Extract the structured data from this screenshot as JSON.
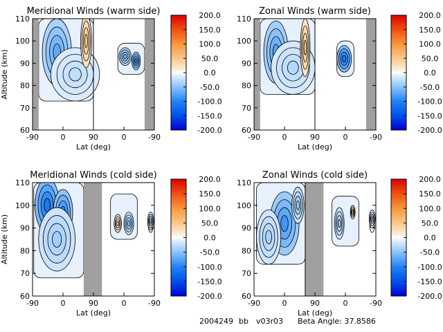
{
  "chart_data": [
    {
      "type": "heatmap",
      "title": "Meridional Winds (warm side)",
      "xlabel": "Lat (deg)",
      "ylabel": "Altitude (km)",
      "x_ticks": [
        "-90",
        "0",
        "90",
        "0",
        "-90"
      ],
      "y_ticks": [
        "60",
        "70",
        "80",
        "90",
        "100",
        "110"
      ],
      "ylim": [
        60,
        110
      ],
      "colorbar": {
        "ticks": [
          "200.0",
          "150.0",
          "100.0",
          "50.0",
          "0.0",
          "-50.0",
          "-100.0",
          "-150.0",
          "-200.0"
        ],
        "range": [
          -200,
          200
        ]
      },
      "blobs": [
        {
          "x": 0.2,
          "y": 95,
          "v": -70,
          "rx": 0.12,
          "ry": 15
        },
        {
          "x": 0.35,
          "y": 85,
          "v": -25,
          "rx": 0.2,
          "ry": 12
        },
        {
          "x": 0.44,
          "y": 100,
          "v": 45,
          "rx": 0.045,
          "ry": 12
        },
        {
          "x": 0.76,
          "y": 93,
          "v": -60,
          "rx": 0.05,
          "ry": 4
        },
        {
          "x": 0.85,
          "y": 91,
          "v": -90,
          "rx": 0.035,
          "ry": 4
        }
      ],
      "data_region": [
        [
          0.05,
          73,
          0.5,
          110
        ],
        [
          0.7,
          85,
          0.92,
          99
        ]
      ],
      "gray_bands": [
        [
          0.0,
          0.05
        ],
        [
          0.92,
          1.0
        ]
      ],
      "vlines": [
        0.5
      ]
    },
    {
      "type": "heatmap",
      "title": "Zonal Winds (warm side)",
      "xlabel": "Lat (deg)",
      "ylabel": "",
      "x_ticks": [
        "-90",
        "0",
        "90",
        "0",
        "-90"
      ],
      "y_ticks": [
        "60",
        "70",
        "80",
        "90",
        "100",
        "110"
      ],
      "ylim": [
        60,
        110
      ],
      "colorbar": {
        "ticks": [
          "200.0",
          "150.0",
          "100.0",
          "50.0",
          "0.0",
          "-50.0",
          "-100.0",
          "-150.0",
          "-200.0"
        ],
        "range": [
          -200,
          200
        ]
      },
      "blobs": [
        {
          "x": 0.18,
          "y": 95,
          "v": -75,
          "rx": 0.1,
          "ry": 14
        },
        {
          "x": 0.32,
          "y": 88,
          "v": -30,
          "rx": 0.18,
          "ry": 12
        },
        {
          "x": 0.42,
          "y": 97,
          "v": 45,
          "rx": 0.04,
          "ry": 13
        },
        {
          "x": 0.74,
          "y": 92,
          "v": -110,
          "rx": 0.06,
          "ry": 6
        }
      ],
      "data_region": [
        [
          0.05,
          76,
          0.5,
          110
        ],
        [
          0.68,
          84,
          0.82,
          100
        ]
      ],
      "gray_bands": [
        [
          0.0,
          0.05
        ],
        [
          0.92,
          1.0
        ]
      ],
      "vlines": [
        0.5
      ]
    },
    {
      "type": "heatmap",
      "title": "Meridional Winds (cold side)",
      "xlabel": "Lat (deg)",
      "ylabel": "Altitude (km)",
      "x_ticks": [
        "-90",
        "0",
        "90",
        "0",
        "-90"
      ],
      "y_ticks": [
        "60",
        "70",
        "80",
        "90",
        "100",
        "110"
      ],
      "ylim": [
        60,
        110
      ],
      "colorbar": {
        "ticks": [
          "200.0",
          "150.0",
          "100.0",
          "50.0",
          "0.0",
          "-50.0",
          "-100.0",
          "-150.0",
          "-200.0"
        ],
        "range": [
          -200,
          200
        ]
      },
      "blobs": [
        {
          "x": 0.12,
          "y": 100,
          "v": -110,
          "rx": 0.1,
          "ry": 12
        },
        {
          "x": 0.25,
          "y": 97,
          "v": -95,
          "rx": 0.08,
          "ry": 10
        },
        {
          "x": 0.2,
          "y": 85,
          "v": -40,
          "rx": 0.15,
          "ry": 14
        },
        {
          "x": 0.7,
          "y": 92,
          "v": 30,
          "rx": 0.03,
          "ry": 4
        },
        {
          "x": 0.79,
          "y": 92,
          "v": -45,
          "rx": 0.04,
          "ry": 5
        },
        {
          "x": 0.97,
          "y": 93,
          "v": -30,
          "rx": 0.025,
          "ry": 4
        }
      ],
      "data_region": [
        [
          0.01,
          68,
          0.42,
          110
        ],
        [
          0.64,
          85,
          0.86,
          105
        ],
        [
          0.95,
          88,
          0.99,
          97
        ]
      ],
      "gray_bands": [
        [
          0.42,
          0.57
        ]
      ],
      "vlines": []
    },
    {
      "type": "heatmap",
      "title": "Zonal Winds (cold side)",
      "xlabel": "Lat (deg)",
      "ylabel": "",
      "x_ticks": [
        "-90",
        "0",
        "90",
        "0",
        "-90"
      ],
      "y_ticks": [
        "60",
        "70",
        "80",
        "90",
        "100",
        "110"
      ],
      "ylim": [
        60,
        110
      ],
      "colorbar": {
        "ticks": [
          "200.0",
          "150.0",
          "100.0",
          "50.0",
          "0.0",
          "-50.0",
          "-100.0",
          "-150.0",
          "-200.0"
        ],
        "range": [
          -200,
          200
        ]
      },
      "blobs": [
        {
          "x": 0.25,
          "y": 92,
          "v": -85,
          "rx": 0.12,
          "ry": 14
        },
        {
          "x": 0.12,
          "y": 86,
          "v": -35,
          "rx": 0.1,
          "ry": 12
        },
        {
          "x": 0.36,
          "y": 100,
          "v": -45,
          "rx": 0.05,
          "ry": 8
        },
        {
          "x": 0.7,
          "y": 92,
          "v": -40,
          "rx": 0.04,
          "ry": 7
        },
        {
          "x": 0.81,
          "y": 97,
          "v": 30,
          "rx": 0.02,
          "ry": 3
        },
        {
          "x": 0.97,
          "y": 94,
          "v": -25,
          "rx": 0.025,
          "ry": 4
        }
      ],
      "data_region": [
        [
          0.02,
          74,
          0.42,
          110
        ],
        [
          0.64,
          82,
          0.86,
          104
        ],
        [
          0.95,
          88,
          0.99,
          97
        ]
      ],
      "gray_bands": [
        [
          0.42,
          0.57
        ]
      ],
      "vlines": [
        0.42
      ]
    }
  ],
  "footer": {
    "date_code": "2004249",
    "flag": "bb",
    "version": "v03r03",
    "beta_label": "Beta Angle: 37.8586"
  }
}
